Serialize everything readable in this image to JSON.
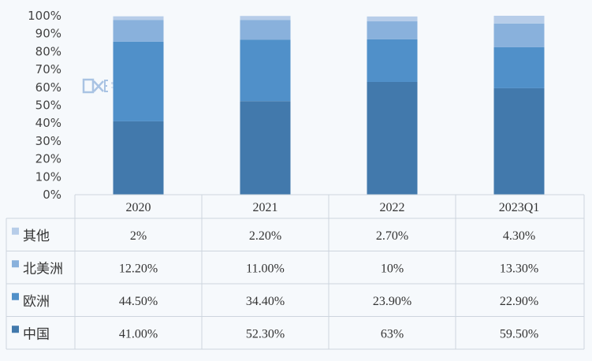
{
  "chart_data": {
    "type": "bar",
    "stacked": true,
    "categories": [
      "2020",
      "2021",
      "2022",
      "2023Q1"
    ],
    "y_ticks": [
      "0%",
      "10%",
      "20%",
      "30%",
      "40%",
      "50%",
      "60%",
      "70%",
      "80%",
      "90%",
      "100%"
    ],
    "ylim": [
      0,
      100
    ],
    "series": [
      {
        "name": "中国",
        "values": [
          41.0,
          52.3,
          63.0,
          59.5
        ],
        "labels": [
          "41.00%",
          "52.30%",
          "63%",
          "59.50%"
        ],
        "color": "#4279ac"
      },
      {
        "name": "欧洲",
        "values": [
          44.5,
          34.4,
          23.9,
          22.9
        ],
        "labels": [
          "44.50%",
          "34.40%",
          "23.90%",
          "22.90%"
        ],
        "color": "#5090c9"
      },
      {
        "name": "北美洲",
        "values": [
          12.2,
          11.0,
          10.0,
          13.3
        ],
        "labels": [
          "12.20%",
          "11.00%",
          "10%",
          "13.30%"
        ],
        "color": "#89b1dc"
      },
      {
        "name": "其他",
        "values": [
          2.0,
          2.2,
          2.7,
          4.3
        ],
        "labels": [
          "2%",
          "2.20%",
          "2.70%",
          "4.30%"
        ],
        "color": "#b7cde9"
      }
    ],
    "grid": false,
    "legend": "table",
    "watermark": "DXE"
  }
}
